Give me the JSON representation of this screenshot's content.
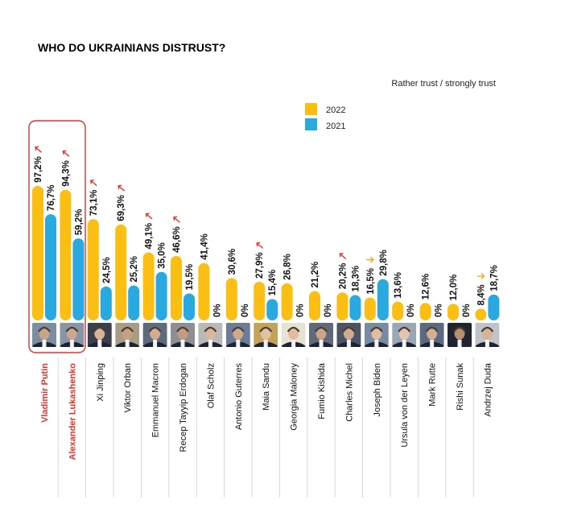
{
  "chart_data": {
    "type": "bar",
    "title": "WHO DO UKRAINIANS DISTRUST?",
    "subtitle": "Rather trust / strongly trust",
    "categories": [
      "Vladimir Putin",
      "Alexander Lukashenko",
      "Xi Jinping",
      "Viktor Orban",
      "Emmanuel Macron",
      "Recep Tayyip Erdogan",
      "Olaf Scholz",
      "Antonio Guterres",
      "Maia Sandu",
      "Georgia Maloney",
      "Fumio Kishida",
      "Charles Michel",
      "Joseph Biden",
      "Ursula von der Leyen",
      "Mark Rutte",
      "Rishi Sunak",
      "Andrzej Duda"
    ],
    "highlighted": [
      "Vladimir Putin",
      "Alexander Lukashenko"
    ],
    "series": [
      {
        "name": "2022",
        "color": "#fbbf14",
        "values": [
          97.2,
          94.3,
          73.1,
          69.3,
          49.1,
          46.6,
          41.4,
          30.6,
          27.9,
          26.8,
          21.2,
          20.2,
          16.5,
          13.6,
          12.6,
          12.0,
          8.4
        ],
        "labels": [
          "97,2%",
          "94,3%",
          "73,1%",
          "69,3%",
          "49,1%",
          "46,6%",
          "41,4%",
          "30,6%",
          "27,9%",
          "26,8%",
          "21,2%",
          "20,2%",
          "16,5%",
          "13,6%",
          "12,6%",
          "12,0%",
          "8,4%"
        ]
      },
      {
        "name": "2021",
        "color": "#2aa9e0",
        "values": [
          76.7,
          59.2,
          24.5,
          25.2,
          35.0,
          19.5,
          0,
          0,
          15.4,
          0,
          0,
          18.3,
          29.8,
          0,
          0,
          0,
          18.7
        ],
        "labels": [
          "76,7%",
          "59,2%",
          "24,5%",
          "25,2%",
          "35,0%",
          "19,5%",
          "0%",
          "0%",
          "15,4%",
          "0%",
          "0%",
          "18,3%",
          "29,8%",
          "0%",
          "0%",
          "0%",
          "18,7%"
        ]
      }
    ],
    "trend": [
      "up",
      "up",
      "up",
      "up",
      "up",
      "up",
      "none",
      "none",
      "up",
      "none",
      "none",
      "up",
      "down",
      "none",
      "none",
      "none",
      "down"
    ],
    "trend_colors": {
      "up": "#e0332d",
      "down": "#f5a623"
    },
    "ylim": [
      0,
      100
    ],
    "grid": false,
    "legend_position": "top-right",
    "photo_icons": [
      "putin-photo",
      "lukashenko-photo",
      "xi-jinping-photo",
      "orban-photo",
      "macron-photo",
      "erdogan-photo",
      "scholz-photo",
      "guterres-photo",
      "sandu-photo",
      "maloney-photo",
      "kishida-photo",
      "michel-photo",
      "biden-photo",
      "von-der-leyen-photo",
      "rutte-photo",
      "sunak-photo",
      "duda-photo"
    ]
  }
}
